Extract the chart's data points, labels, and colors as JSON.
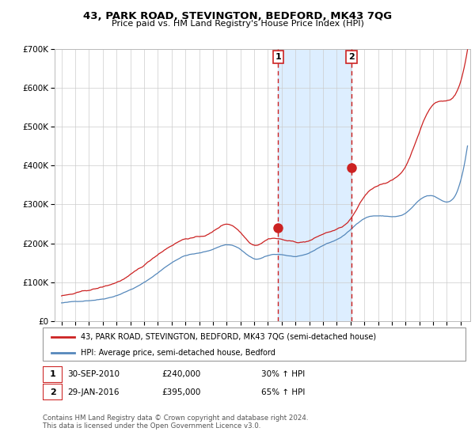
{
  "title": "43, PARK ROAD, STEVINGTON, BEDFORD, MK43 7QG",
  "subtitle": "Price paid vs. HM Land Registry's House Price Index (HPI)",
  "legend_line1": "43, PARK ROAD, STEVINGTON, BEDFORD, MK43 7QG (semi-detached house)",
  "legend_line2": "HPI: Average price, semi-detached house, Bedford",
  "footnote": "Contains HM Land Registry data © Crown copyright and database right 2024.\nThis data is licensed under the Open Government Licence v3.0.",
  "transaction1_date": "30-SEP-2010",
  "transaction1_price": "£240,000",
  "transaction1_hpi": "30% ↑ HPI",
  "transaction2_date": "29-JAN-2016",
  "transaction2_price": "£395,000",
  "transaction2_hpi": "65% ↑ HPI",
  "transaction1_x": 2010.75,
  "transaction1_y": 240000,
  "transaction2_x": 2016.08,
  "transaction2_y": 395000,
  "hpi_color": "#5588bb",
  "price_color": "#cc2222",
  "background_color": "#ffffff",
  "plot_bg_color": "#ffffff",
  "highlight_bg_color": "#ddeeff",
  "ylim": [
    0,
    700000
  ],
  "xlim_start": 1994.5,
  "xlim_end": 2024.7
}
